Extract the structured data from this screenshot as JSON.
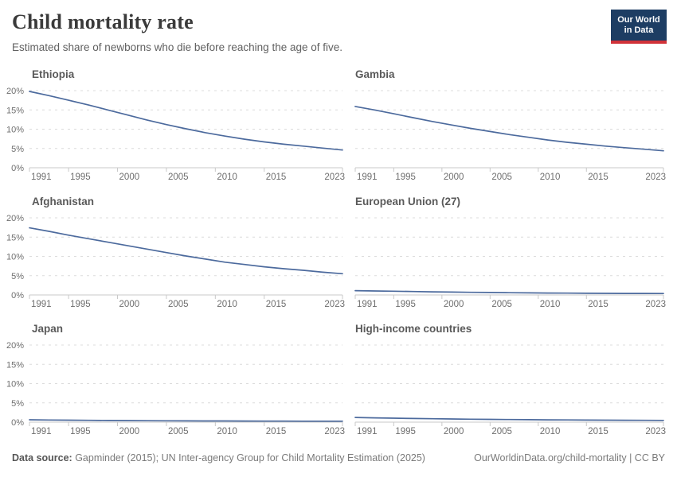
{
  "header": {
    "title": "Child mortality rate",
    "subtitle": "Estimated share of newborns who die before reaching the age of five.",
    "logo": {
      "line1": "Our World",
      "line2": "in Data",
      "bg": "#1d3d63",
      "accent": "#d13239"
    }
  },
  "footer": {
    "source_label": "Data source:",
    "source_text": " Gapminder (2015); UN Inter-agency Group for Child Mortality Estimation (2025)",
    "link_text": "OurWorldinData.org/child-mortality",
    "separator": " | ",
    "license": "CC BY"
  },
  "chart_data": {
    "type": "line",
    "title": "Child mortality rate",
    "subtitle": "Estimated share of newborns who die before reaching the age of five.",
    "grid": "dashed-horizontal",
    "legend_position": "none",
    "line_color": "#4c6a9d",
    "x": [
      1991,
      1993,
      1995,
      1997,
      1999,
      2001,
      2003,
      2005,
      2007,
      2009,
      2011,
      2013,
      2015,
      2017,
      2019,
      2021,
      2023
    ],
    "x_ticks": [
      {
        "year": 1991,
        "label": "1991"
      },
      {
        "year": 1995,
        "label": "1995"
      },
      {
        "year": 2000,
        "label": "2000"
      },
      {
        "year": 2005,
        "label": "2005"
      },
      {
        "year": 2010,
        "label": "2010"
      },
      {
        "year": 2015,
        "label": "2015"
      },
      {
        "year": 2023,
        "label": "2023"
      }
    ],
    "y_ticks": [
      {
        "v": 0,
        "label": "0%"
      },
      {
        "v": 5,
        "label": "5%"
      },
      {
        "v": 10,
        "label": "10%"
      },
      {
        "v": 15,
        "label": "15%"
      },
      {
        "v": 20,
        "label": "20%"
      }
    ],
    "xlim": [
      1991,
      2023
    ],
    "ylim": [
      0,
      20
    ],
    "ylabel": "",
    "xlabel": "",
    "panels": [
      {
        "title": "Ethiopia",
        "show_y_labels": true,
        "values": [
          19.8,
          18.7,
          17.5,
          16.3,
          15.0,
          13.7,
          12.4,
          11.2,
          10.1,
          9.1,
          8.2,
          7.4,
          6.7,
          6.1,
          5.6,
          5.1,
          4.6
        ]
      },
      {
        "title": "Gambia",
        "show_y_labels": false,
        "values": [
          15.9,
          15.0,
          14.0,
          13.0,
          12.0,
          11.1,
          10.2,
          9.4,
          8.6,
          7.9,
          7.2,
          6.6,
          6.1,
          5.6,
          5.2,
          4.8,
          4.4
        ]
      },
      {
        "title": "Afghanistan",
        "show_y_labels": true,
        "values": [
          17.4,
          16.5,
          15.5,
          14.6,
          13.7,
          12.8,
          11.9,
          11.0,
          10.1,
          9.3,
          8.5,
          7.9,
          7.3,
          6.8,
          6.4,
          5.9,
          5.5
        ]
      },
      {
        "title": "European Union (27)",
        "show_y_labels": false,
        "values": [
          1.12,
          1.04,
          0.96,
          0.88,
          0.81,
          0.74,
          0.68,
          0.63,
          0.58,
          0.54,
          0.5,
          0.47,
          0.44,
          0.42,
          0.4,
          0.39,
          0.38
        ]
      },
      {
        "title": "Japan",
        "show_y_labels": true,
        "values": [
          0.62,
          0.56,
          0.51,
          0.47,
          0.44,
          0.41,
          0.38,
          0.35,
          0.33,
          0.31,
          0.3,
          0.29,
          0.27,
          0.26,
          0.25,
          0.25,
          0.24
        ]
      },
      {
        "title": "High-income countries",
        "show_y_labels": false,
        "values": [
          1.22,
          1.12,
          1.03,
          0.95,
          0.88,
          0.82,
          0.77,
          0.72,
          0.68,
          0.64,
          0.6,
          0.57,
          0.54,
          0.51,
          0.49,
          0.47,
          0.45
        ]
      }
    ]
  }
}
